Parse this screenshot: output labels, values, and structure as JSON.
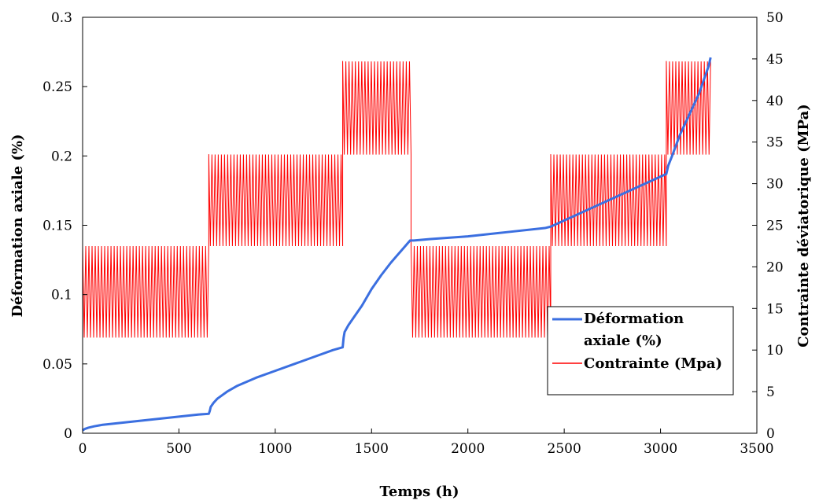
{
  "chart_data": {
    "type": "line",
    "title": "",
    "xlabel": "Temps (h)",
    "ylabel": "Déformation axiale  (%)",
    "y2label": "Contrainte déviatorique (MPa)",
    "xlim": [
      0,
      3500
    ],
    "ylim": [
      0,
      0.3
    ],
    "y2lim": [
      0,
      50
    ],
    "x_ticks": [
      "0",
      "500",
      "1000",
      "1500",
      "2000",
      "2500",
      "3000",
      "3500"
    ],
    "y_ticks": [
      "0",
      "0.05",
      "0.1",
      "0.15",
      "0.2",
      "0.25",
      "0.3"
    ],
    "y2_ticks": [
      "0",
      "5",
      "10",
      "15",
      "20",
      "25",
      "30",
      "35",
      "40",
      "45",
      "50"
    ],
    "grid": false,
    "legend_position": "bottom-right",
    "series": [
      {
        "name": "Déformation axiale (%)",
        "axis": "left",
        "color": "#3b6fe0",
        "x": [
          0,
          10,
          30,
          60,
          100,
          200,
          300,
          400,
          500,
          600,
          655,
          660,
          665,
          680,
          700,
          750,
          800,
          900,
          1000,
          1100,
          1200,
          1300,
          1350,
          1355,
          1360,
          1380,
          1400,
          1450,
          1500,
          1550,
          1600,
          1650,
          1700,
          1710,
          1720,
          1800,
          2000,
          2200,
          2400,
          2430,
          3030,
          3040,
          3060,
          3100,
          3150,
          3200,
          3250,
          3260
        ],
        "y": [
          0.002,
          0.003,
          0.004,
          0.005,
          0.006,
          0.0075,
          0.009,
          0.0105,
          0.012,
          0.0135,
          0.014,
          0.016,
          0.019,
          0.022,
          0.025,
          0.03,
          0.034,
          0.04,
          0.045,
          0.05,
          0.055,
          0.06,
          0.062,
          0.069,
          0.073,
          0.078,
          0.082,
          0.092,
          0.104,
          0.114,
          0.123,
          0.131,
          0.139,
          0.139,
          0.139,
          0.14,
          0.142,
          0.145,
          0.148,
          0.149,
          0.187,
          0.193,
          0.2,
          0.215,
          0.23,
          0.245,
          0.265,
          0.271
        ]
      },
      {
        "name": "Contrainte (Mpa)",
        "axis": "right",
        "color": "#ff0000",
        "style": "cyclic",
        "blocks": [
          {
            "x_start": 0,
            "x_end": 655,
            "min": 11.5,
            "max": 22.5
          },
          {
            "x_start": 655,
            "x_end": 1350,
            "min": 22.5,
            "max": 33.5
          },
          {
            "x_start": 1350,
            "x_end": 1705,
            "min": 33.5,
            "max": 44.7
          },
          {
            "x_start": 1705,
            "x_end": 2430,
            "min": 11.5,
            "max": 22.5
          },
          {
            "x_start": 2430,
            "x_end": 3030,
            "min": 22.5,
            "max": 33.5
          },
          {
            "x_start": 3030,
            "x_end": 3260,
            "min": 33.5,
            "max": 44.7
          }
        ]
      }
    ]
  }
}
